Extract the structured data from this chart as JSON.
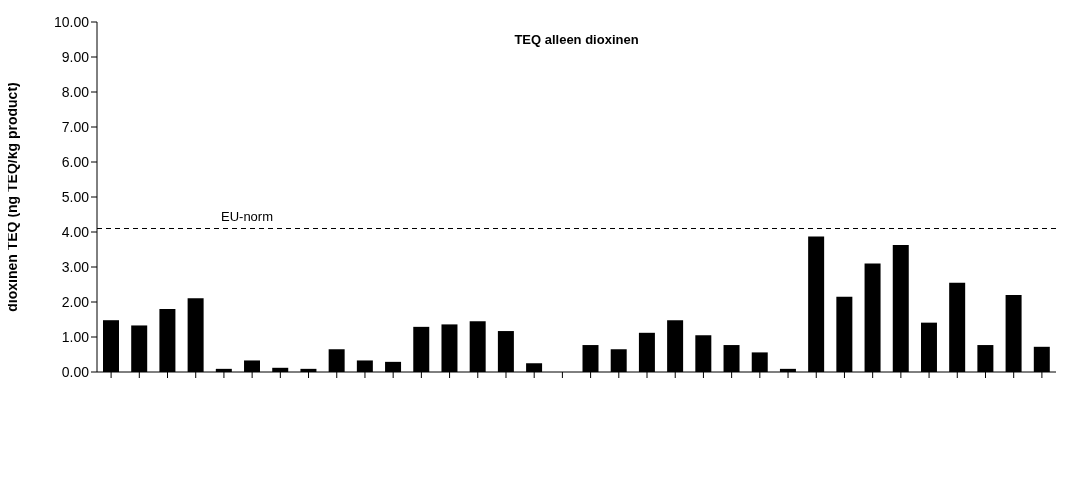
{
  "chart_data": {
    "type": "bar",
    "title": "TEQ alleen dioxinen",
    "ylabel": "dioxinen TEQ (ng TEQ/kg product)",
    "categories": [
      null,
      null,
      null,
      null,
      null,
      null,
      null,
      null,
      null,
      null,
      null,
      null,
      null,
      null,
      null,
      null,
      null,
      null,
      null,
      null,
      null,
      null,
      null,
      null,
      null,
      null,
      null,
      null,
      null,
      null,
      null,
      null,
      null,
      null
    ],
    "values": [
      1.48,
      1.33,
      1.8,
      2.11,
      0.09,
      0.33,
      0.12,
      0.09,
      0.65,
      0.33,
      0.29,
      1.29,
      1.36,
      1.45,
      1.17,
      0.25,
      0,
      0.77,
      0.65,
      1.12,
      1.48,
      1.05,
      0.77,
      0.56,
      0.09,
      3.87,
      2.15,
      3.1,
      3.63,
      1.41,
      2.55,
      0.77,
      2.2,
      0.72
    ],
    "color": "#000000",
    "ylim": [
      0,
      10
    ],
    "yticks": [
      {
        "value": 0,
        "label": "0.00"
      },
      {
        "value": 1,
        "label": "1.00"
      },
      {
        "value": 2,
        "label": "2.00"
      },
      {
        "value": 3,
        "label": "3.00"
      },
      {
        "value": 4,
        "label": "4.00"
      },
      {
        "value": 5,
        "label": "5.00"
      },
      {
        "value": 6,
        "label": "6.00"
      },
      {
        "value": 7,
        "label": "7.00"
      },
      {
        "value": 8,
        "label": "8.00"
      },
      {
        "value": 9,
        "label": "9.00"
      },
      {
        "value": 10,
        "label": "10.00"
      }
    ],
    "ref_lines": [
      {
        "axis": "y",
        "value": 4.1,
        "label": "EU-norm",
        "line_style": "dashed",
        "color": "#000000"
      }
    ],
    "grid": false,
    "legend": false
  }
}
